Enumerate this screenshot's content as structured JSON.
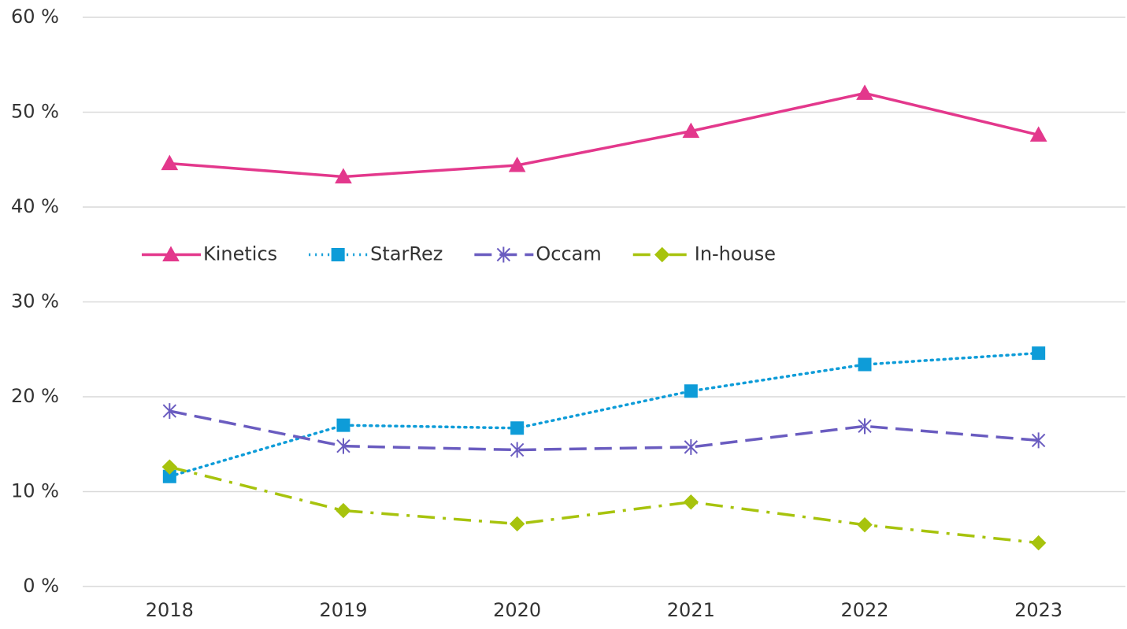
{
  "chart_data": {
    "type": "line",
    "categories": [
      "2018",
      "2019",
      "2020",
      "2021",
      "2022",
      "2023"
    ],
    "series": [
      {
        "name": "Kinetics",
        "color": "#e3388c",
        "dash": "solid",
        "marker": "triangle",
        "values": [
          44.6,
          43.2,
          44.4,
          48.0,
          52.0,
          47.6
        ]
      },
      {
        "name": "StarRez",
        "color": "#0e9cd8",
        "dash": "dotted",
        "marker": "square",
        "values": [
          11.6,
          17.0,
          16.7,
          20.6,
          23.4,
          24.6
        ]
      },
      {
        "name": "Occam",
        "color": "#6a5cc0",
        "dash": "dashed",
        "marker": "star",
        "values": [
          18.5,
          14.8,
          14.4,
          14.7,
          16.9,
          15.4
        ]
      },
      {
        "name": "In-house",
        "color": "#a7c30d",
        "dash": "dashdot",
        "marker": "diamond",
        "values": [
          12.6,
          8.0,
          6.6,
          8.9,
          6.5,
          4.6
        ]
      }
    ],
    "ylim": [
      0,
      60
    ],
    "yticks": [
      {
        "value": 0,
        "label": "0 %"
      },
      {
        "value": 10,
        "label": "10 %"
      },
      {
        "value": 20,
        "label": "20 %"
      },
      {
        "value": 30,
        "label": "30 %"
      },
      {
        "value": 40,
        "label": "40 %"
      },
      {
        "value": 50,
        "label": "50 %"
      },
      {
        "value": 60,
        "label": "60 %"
      }
    ],
    "grid": true,
    "legend": "center-left"
  }
}
